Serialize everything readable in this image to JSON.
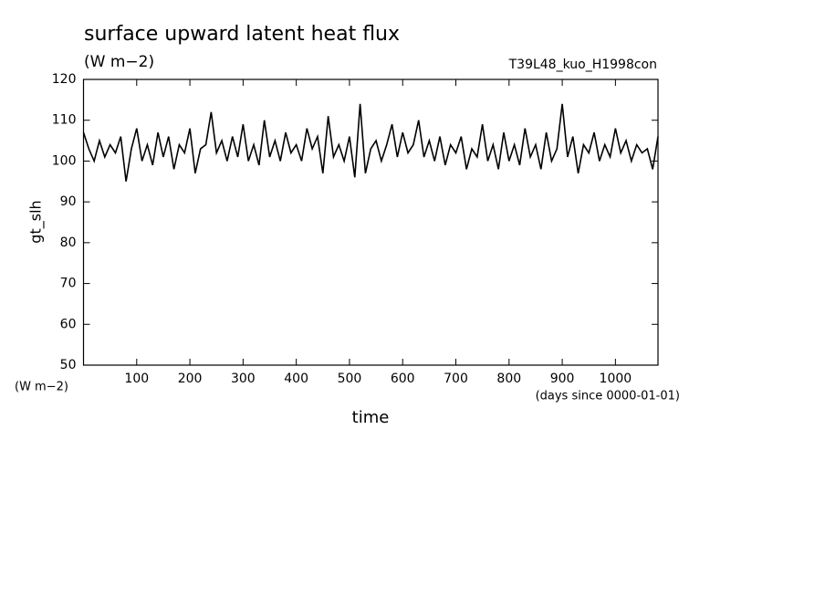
{
  "chart_data": {
    "type": "line",
    "title": "surface upward latent heat flux",
    "subtitle": "(W m−2)",
    "annotation": "T39L48_kuo_H1998con",
    "y_label": "gt_slh",
    "y_unit": "(W m−2)",
    "x_label": "time",
    "x_unit": "(days since 0000-01-01)",
    "x": [
      0,
      10,
      20,
      30,
      40,
      50,
      60,
      70,
      80,
      90,
      100,
      110,
      120,
      130,
      140,
      150,
      160,
      170,
      180,
      190,
      200,
      210,
      220,
      230,
      240,
      250,
      260,
      270,
      280,
      290,
      300,
      310,
      320,
      330,
      340,
      350,
      360,
      370,
      380,
      390,
      400,
      410,
      420,
      430,
      440,
      450,
      460,
      470,
      480,
      490,
      500,
      510,
      520,
      530,
      540,
      550,
      560,
      570,
      580,
      590,
      600,
      610,
      620,
      630,
      640,
      650,
      660,
      670,
      680,
      690,
      700,
      710,
      720,
      730,
      740,
      750,
      760,
      770,
      780,
      790,
      800,
      810,
      820,
      830,
      840,
      850,
      860,
      870,
      880,
      890,
      900,
      910,
      920,
      930,
      940,
      950,
      960,
      970,
      980,
      990,
      1000,
      1010,
      1020,
      1030,
      1040,
      1050,
      1060,
      1070,
      1080
    ],
    "series": [
      {
        "name": "gt_slh",
        "color": "#000000",
        "values": [
          107,
          103,
          100,
          105,
          101,
          104,
          102,
          106,
          95,
          103,
          108,
          100,
          104,
          99,
          107,
          101,
          106,
          98,
          104,
          102,
          108,
          97,
          103,
          104,
          112,
          102,
          105,
          100,
          106,
          101,
          109,
          100,
          104,
          99,
          110,
          101,
          105,
          100,
          107,
          102,
          104,
          100,
          108,
          103,
          106,
          97,
          111,
          101,
          104,
          100,
          106,
          96,
          114,
          97,
          103,
          105,
          100,
          104,
          109,
          101,
          107,
          102,
          104,
          110,
          101,
          105,
          100,
          106,
          99,
          104,
          102,
          106,
          98,
          103,
          101,
          109,
          100,
          104,
          98,
          107,
          100,
          104,
          99,
          108,
          101,
          104,
          98,
          107,
          100,
          103,
          114,
          101,
          106,
          97,
          104,
          102,
          107,
          100,
          104,
          101,
          108,
          102,
          105,
          100,
          104,
          102,
          103,
          98,
          106
        ]
      }
    ],
    "xlim": [
      0,
      1080
    ],
    "ylim": [
      50,
      120
    ],
    "xticks": [
      100,
      200,
      300,
      400,
      500,
      600,
      700,
      800,
      900,
      1000
    ],
    "yticks": [
      50,
      60,
      70,
      80,
      90,
      100,
      110,
      120
    ]
  }
}
